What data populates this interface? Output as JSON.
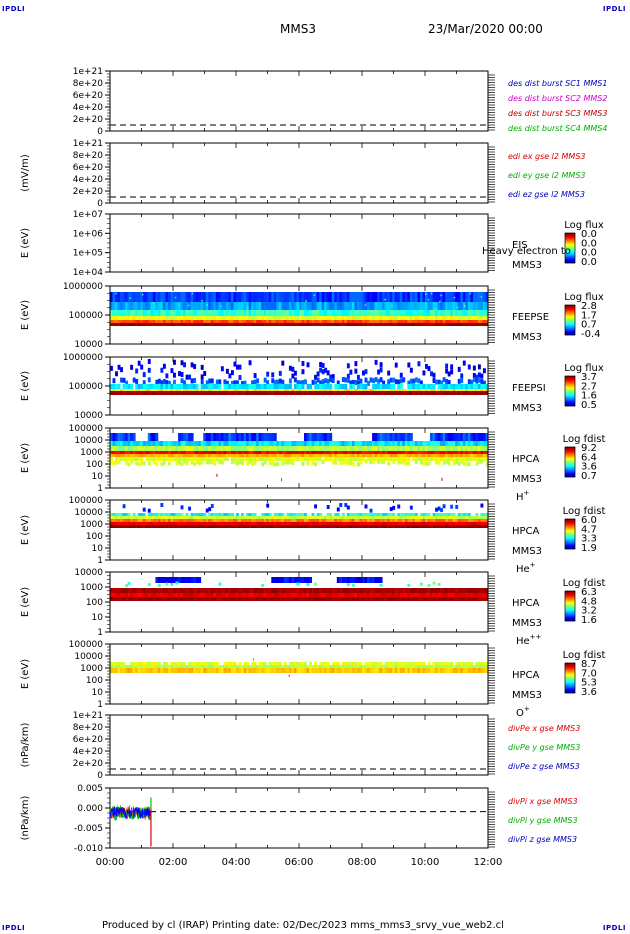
{
  "corner_labels": {
    "top_left": "IPDLI",
    "top_right": "IPDLI",
    "bottom_left": "IPDLI",
    "bottom_right": "IPDLI"
  },
  "header": {
    "spacecraft": "MMS3",
    "date": "23/Mar/2020 00:00"
  },
  "footer": {
    "text": "Produced by cl (IRAP)   Printing date: 02/Dec/2023   mms_mms3_srvy_vue_web2.cl"
  },
  "colors": {
    "plot_blue": "#0000ff",
    "plot_red": "#ff0000",
    "plot_green": "#00c000",
    "plot_magenta": "#d000d0",
    "label_navy": "#000080"
  },
  "chart_data": [
    {
      "id": "des",
      "type": "line",
      "ylabel": "",
      "ticks": [
        "1e+21",
        "8e+20",
        "6e+20",
        "4e+20",
        "2e+20",
        "0"
      ],
      "legend": [
        {
          "text": "des dist burst SC1 MMS1",
          "color": "#0000c0"
        },
        {
          "text": "des dist burst SC2 MMS2",
          "color": "#d000d0"
        },
        {
          "text": "des dist burst SC3 MMS3",
          "color": "#c00000"
        },
        {
          "text": "des dist burst SC4 MMS4",
          "color": "#00b000"
        }
      ],
      "series": []
    },
    {
      "id": "edi",
      "type": "line",
      "ylabel": "(mV/m)",
      "ticks": [
        "1e+21",
        "8e+20",
        "6e+20",
        "4e+20",
        "2e+20",
        "0"
      ],
      "legend": [
        {
          "text": "edi ex gse l2 MMS3",
          "color": "#e00000"
        },
        {
          "text": "edi ey gse l2 MMS3",
          "color": "#00b000"
        },
        {
          "text": "edi ez gse l2 MMS3",
          "color": "#0000c0"
        }
      ],
      "series": []
    },
    {
      "id": "eis",
      "type": "heatmap",
      "ylabel": "E (eV)",
      "yscale": "log",
      "ticks": [
        "1e+07",
        "1e+06",
        "1e+05",
        "1e+04"
      ],
      "instrument": "EIS",
      "sc": "MMS3",
      "overlay": "Heavy electron to",
      "colorbar": {
        "title": "Log flux",
        "ticks": [
          "0.0",
          "0.0",
          "0.0",
          "0.0"
        ]
      }
    },
    {
      "id": "feepse",
      "type": "heatmap",
      "ylabel": "E (eV)",
      "yscale": "log",
      "ticks": [
        "1000000",
        "100000",
        "10000"
      ],
      "instrument": "FEEPSE",
      "sc": "MMS3",
      "colorbar": {
        "title": "Log flux",
        "ticks": [
          "2.8",
          "1.7",
          "0.7",
          "-0.4"
        ]
      }
    },
    {
      "id": "feepsi",
      "type": "heatmap",
      "ylabel": "E (eV)",
      "yscale": "log",
      "ticks": [
        "1000000",
        "100000",
        "10000"
      ],
      "instrument": "FEEPSI",
      "sc": "MMS3",
      "colorbar": {
        "title": "Log flux",
        "ticks": [
          "3.7",
          "2.7",
          "1.6",
          "0.5"
        ]
      }
    },
    {
      "id": "hpca_h",
      "type": "heatmap",
      "ylabel": "E (eV)",
      "yscale": "log",
      "ticks": [
        "100000",
        "10000",
        "1000",
        "100",
        "10",
        "1"
      ],
      "instrument": "HPCA",
      "sc": "MMS3",
      "species": "H",
      "species_sup": "+",
      "colorbar": {
        "title": "Log fdist",
        "ticks": [
          "9.2",
          "6.4",
          "3.6",
          "0.7"
        ]
      }
    },
    {
      "id": "hpca_he",
      "type": "heatmap",
      "ylabel": "E (eV)",
      "yscale": "log",
      "ticks": [
        "100000",
        "10000",
        "1000",
        "100",
        "10",
        "1"
      ],
      "instrument": "HPCA",
      "sc": "MMS3",
      "species": "He",
      "species_sup": "+",
      "colorbar": {
        "title": "Log fdist",
        "ticks": [
          "6.0",
          "4.7",
          "3.3",
          "1.9"
        ]
      }
    },
    {
      "id": "hpca_hepp",
      "type": "heatmap",
      "ylabel": "E (eV)",
      "yscale": "log",
      "ticks": [
        "10000",
        "1000",
        "100",
        "10",
        "1"
      ],
      "instrument": "HPCA",
      "sc": "MMS3",
      "species": "He",
      "species_sup": "++",
      "colorbar": {
        "title": "Log fdist",
        "ticks": [
          "6.3",
          "4.8",
          "3.2",
          "1.6"
        ]
      }
    },
    {
      "id": "hpca_o",
      "type": "heatmap",
      "ylabel": "E (eV)",
      "yscale": "log",
      "ticks": [
        "100000",
        "10000",
        "1000",
        "100",
        "10",
        "1"
      ],
      "instrument": "HPCA",
      "sc": "MMS3",
      "species": "O",
      "species_sup": "+",
      "colorbar": {
        "title": "Log fdist",
        "ticks": [
          "8.7",
          "7.0",
          "5.3",
          "3.6"
        ]
      }
    },
    {
      "id": "divpe",
      "type": "line",
      "ylabel": "(nPa/km)",
      "ticks": [
        "1e+21",
        "8e+20",
        "6e+20",
        "4e+20",
        "2e+20",
        "0"
      ],
      "legend": [
        {
          "text": "divPe x gse MMS3",
          "color": "#e00000"
        },
        {
          "text": "divPe y gse MMS3",
          "color": "#00b000"
        },
        {
          "text": "divPe z gse MMS3",
          "color": "#0000c0"
        }
      ],
      "series": []
    },
    {
      "id": "divpi",
      "type": "line",
      "ylabel": "(nPa/km)",
      "ticks": [
        "0.005",
        "0.000",
        "-0.005",
        "-0.010"
      ],
      "ylim": [
        -0.0115,
        0.0075
      ],
      "legend": [
        {
          "text": "divPi x gse MMS3",
          "color": "#e00000"
        },
        {
          "text": "divPi y gse MMS3",
          "color": "#00b000"
        },
        {
          "text": "divPi z gse MMS3",
          "color": "#0000c0"
        }
      ],
      "series": [
        {
          "name": "divPi x gse MMS3",
          "x_hours": [
            0,
            1.3
          ],
          "approx_range": [
            -0.004,
            0.003
          ]
        },
        {
          "name": "divPi y gse MMS3",
          "x_hours": [
            0,
            1.3
          ],
          "approx_range": [
            -0.005,
            0.004
          ]
        },
        {
          "name": "divPi z gse MMS3",
          "x_hours": [
            0,
            1.3
          ],
          "approx_range": [
            -0.004,
            0.003
          ]
        }
      ]
    }
  ],
  "x_axis": {
    "ticks": [
      "00:00",
      "02:00",
      "04:00",
      "06:00",
      "08:00",
      "10:00",
      "12:00"
    ],
    "range_hours": [
      0,
      12
    ]
  }
}
